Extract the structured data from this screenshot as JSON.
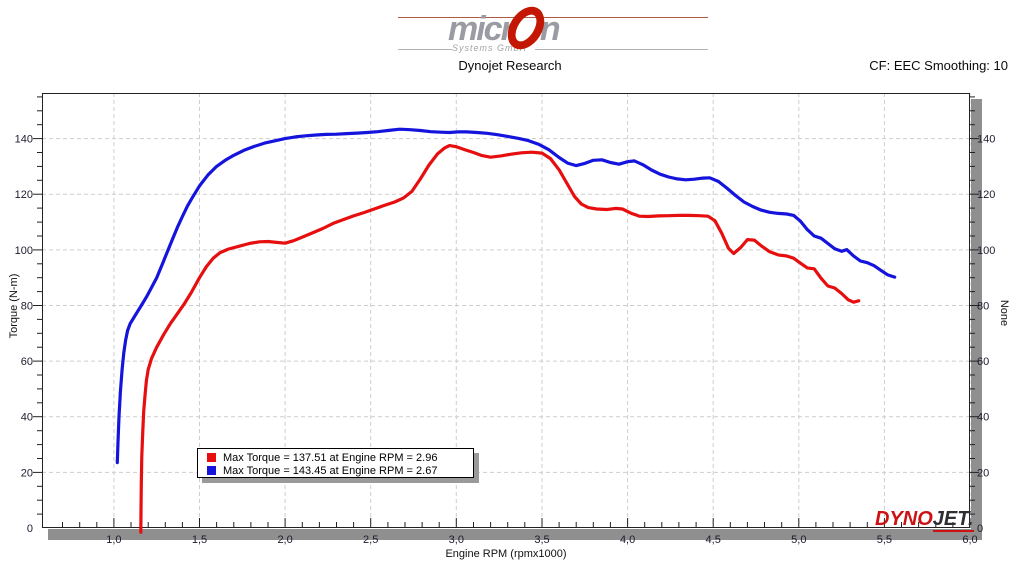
{
  "header": {
    "logo": {
      "brand_left": "micr",
      "brand_right": "n",
      "subtitle": "Systems GmbH"
    },
    "subtitle": "Dynojet Research",
    "smoothing_label": "CF: EEC Smoothing: 10"
  },
  "footer_logo": {
    "dyno": "DYNO",
    "jet": "JET."
  },
  "legend": [
    {
      "color": "#e60e0e",
      "label": "Max Torque = 137.51 at Engine RPM = 2.96"
    },
    {
      "color": "#1414dd",
      "label": "Max Torque = 143.45 at Engine RPM = 2.67"
    }
  ],
  "chart_data": {
    "type": "line",
    "xlabel": "Engine RPM (rpmx1000)",
    "ylabel_left": "Torque (N-m)",
    "ylabel_right": "None",
    "xlim": [
      0.58,
      6.0
    ],
    "ylim": [
      0,
      156.4
    ],
    "grid": "dashed",
    "grid_color": "#cdcdcd",
    "tick_color": "#222222",
    "label_color": "#1c1c2e",
    "x_major_ticks": [
      1.0,
      1.5,
      2.0,
      2.5,
      3.0,
      3.5,
      4.0,
      4.5,
      5.0,
      5.5,
      6.0
    ],
    "x_tick_labels": [
      "1,0",
      "1,5",
      "2,0",
      "2,5",
      "3,0",
      "3,5",
      "4,0",
      "4,5",
      "5,0",
      "5,5",
      "6,0"
    ],
    "x_minor_step": 0.1,
    "y_major_ticks": [
      0,
      20,
      40,
      60,
      80,
      100,
      120,
      140
    ],
    "y_tick_labels": [
      "0",
      "20",
      "40",
      "60",
      "80",
      "100",
      "120",
      "140"
    ],
    "y_minor_step": 5,
    "series": [
      {
        "name": "torque-run-red",
        "color": "#e60e0e",
        "max_torque": 137.51,
        "max_rpm": 2.96,
        "points": [
          [
            1.157,
            -1.5
          ],
          [
            1.158,
            6
          ],
          [
            1.16,
            16
          ],
          [
            1.163,
            26
          ],
          [
            1.168,
            34
          ],
          [
            1.174,
            42
          ],
          [
            1.182,
            48
          ],
          [
            1.19,
            53
          ],
          [
            1.2,
            57
          ],
          [
            1.22,
            61
          ],
          [
            1.25,
            65
          ],
          [
            1.29,
            69.5
          ],
          [
            1.33,
            73.5
          ],
          [
            1.37,
            77
          ],
          [
            1.41,
            80.5
          ],
          [
            1.45,
            84.5
          ],
          [
            1.5,
            90
          ],
          [
            1.54,
            94
          ],
          [
            1.58,
            97
          ],
          [
            1.62,
            99
          ],
          [
            1.67,
            100.3
          ],
          [
            1.73,
            101.3
          ],
          [
            1.79,
            102.3
          ],
          [
            1.85,
            102.9
          ],
          [
            1.9,
            103
          ],
          [
            1.95,
            102.7
          ],
          [
            2,
            102.4
          ],
          [
            2.05,
            103.3
          ],
          [
            2.1,
            104.6
          ],
          [
            2.16,
            106.1
          ],
          [
            2.22,
            107.7
          ],
          [
            2.28,
            109.5
          ],
          [
            2.34,
            110.9
          ],
          [
            2.4,
            112.2
          ],
          [
            2.46,
            113.4
          ],
          [
            2.52,
            114.7
          ],
          [
            2.58,
            116
          ],
          [
            2.64,
            117.2
          ],
          [
            2.69,
            118.6
          ],
          [
            2.74,
            121
          ],
          [
            2.79,
            125.5
          ],
          [
            2.84,
            130.5
          ],
          [
            2.89,
            134.5
          ],
          [
            2.93,
            136.6
          ],
          [
            2.96,
            137.5
          ],
          [
            3,
            137.1
          ],
          [
            3.05,
            136
          ],
          [
            3.1,
            135
          ],
          [
            3.15,
            133.9
          ],
          [
            3.2,
            133.3
          ],
          [
            3.26,
            133.8
          ],
          [
            3.32,
            134.4
          ],
          [
            3.38,
            134.9
          ],
          [
            3.44,
            135.1
          ],
          [
            3.5,
            134.8
          ],
          [
            3.55,
            132.8
          ],
          [
            3.6,
            128.8
          ],
          [
            3.65,
            123.5
          ],
          [
            3.69,
            119.2
          ],
          [
            3.73,
            116.5
          ],
          [
            3.77,
            115.2
          ],
          [
            3.82,
            114.7
          ],
          [
            3.88,
            114.5
          ],
          [
            3.93,
            114.9
          ],
          [
            3.97,
            114.7
          ],
          [
            4.02,
            113.2
          ],
          [
            4.07,
            112.1
          ],
          [
            4.12,
            112
          ],
          [
            4.18,
            112.2
          ],
          [
            4.24,
            112.3
          ],
          [
            4.3,
            112.4
          ],
          [
            4.36,
            112.4
          ],
          [
            4.42,
            112.3
          ],
          [
            4.47,
            112.1
          ],
          [
            4.51,
            110.5
          ],
          [
            4.55,
            106
          ],
          [
            4.59,
            100.5
          ],
          [
            4.62,
            98.7
          ],
          [
            4.66,
            100.8
          ],
          [
            4.7,
            103.7
          ],
          [
            4.74,
            103.5
          ],
          [
            4.78,
            101.5
          ],
          [
            4.83,
            99.3
          ],
          [
            4.88,
            98.2
          ],
          [
            4.93,
            97.8
          ],
          [
            4.97,
            97
          ],
          [
            5.01,
            95.2
          ],
          [
            5.05,
            93.5
          ],
          [
            5.09,
            93.2
          ],
          [
            5.13,
            89.8
          ],
          [
            5.17,
            87
          ],
          [
            5.21,
            86.3
          ],
          [
            5.25,
            84.3
          ],
          [
            5.29,
            82
          ],
          [
            5.32,
            81.2
          ],
          [
            5.35,
            81.7
          ]
        ]
      },
      {
        "name": "torque-run-blue",
        "color": "#1414dd",
        "max_torque": 143.45,
        "max_rpm": 2.67,
        "points": [
          [
            1.02,
            23.5
          ],
          [
            1.024,
            31
          ],
          [
            1.03,
            40
          ],
          [
            1.038,
            49
          ],
          [
            1.048,
            57
          ],
          [
            1.058,
            63
          ],
          [
            1.068,
            67.5
          ],
          [
            1.08,
            71
          ],
          [
            1.095,
            73.5
          ],
          [
            1.115,
            75.5
          ],
          [
            1.135,
            77.5
          ],
          [
            1.16,
            80
          ],
          [
            1.19,
            83
          ],
          [
            1.22,
            86.5
          ],
          [
            1.25,
            90
          ],
          [
            1.28,
            94.5
          ],
          [
            1.31,
            99
          ],
          [
            1.34,
            103.5
          ],
          [
            1.37,
            108
          ],
          [
            1.4,
            112
          ],
          [
            1.43,
            115.8
          ],
          [
            1.46,
            119
          ],
          [
            1.5,
            123
          ],
          [
            1.55,
            127
          ],
          [
            1.6,
            130
          ],
          [
            1.65,
            132.2
          ],
          [
            1.7,
            134
          ],
          [
            1.76,
            135.8
          ],
          [
            1.82,
            137.2
          ],
          [
            1.88,
            138.4
          ],
          [
            1.94,
            139.2
          ],
          [
            2,
            140
          ],
          [
            2.06,
            140.6
          ],
          [
            2.12,
            141
          ],
          [
            2.18,
            141.3
          ],
          [
            2.24,
            141.5
          ],
          [
            2.3,
            141.6
          ],
          [
            2.36,
            141.8
          ],
          [
            2.42,
            142
          ],
          [
            2.48,
            142.2
          ],
          [
            2.54,
            142.5
          ],
          [
            2.6,
            142.9
          ],
          [
            2.67,
            143.4
          ],
          [
            2.73,
            143.2
          ],
          [
            2.79,
            142.9
          ],
          [
            2.85,
            142.5
          ],
          [
            2.91,
            142.3
          ],
          [
            2.96,
            142.2
          ],
          [
            3.01,
            142.4
          ],
          [
            3.06,
            142.4
          ],
          [
            3.12,
            142.2
          ],
          [
            3.18,
            141.9
          ],
          [
            3.24,
            141.4
          ],
          [
            3.3,
            140.8
          ],
          [
            3.36,
            140.1
          ],
          [
            3.42,
            139.3
          ],
          [
            3.48,
            138
          ],
          [
            3.54,
            136
          ],
          [
            3.6,
            133.2
          ],
          [
            3.65,
            131.2
          ],
          [
            3.7,
            130.3
          ],
          [
            3.75,
            131.1
          ],
          [
            3.8,
            132.2
          ],
          [
            3.85,
            132.4
          ],
          [
            3.9,
            131.4
          ],
          [
            3.95,
            130.8
          ],
          [
            4,
            131.7
          ],
          [
            4.04,
            132
          ],
          [
            4.09,
            130.6
          ],
          [
            4.14,
            128.7
          ],
          [
            4.19,
            127.2
          ],
          [
            4.24,
            126.2
          ],
          [
            4.29,
            125.5
          ],
          [
            4.34,
            125.2
          ],
          [
            4.39,
            125.4
          ],
          [
            4.44,
            125.8
          ],
          [
            4.48,
            125.9
          ],
          [
            4.53,
            124.6
          ],
          [
            4.58,
            122.2
          ],
          [
            4.63,
            119.6
          ],
          [
            4.68,
            117.2
          ],
          [
            4.73,
            115.6
          ],
          [
            4.78,
            114.3
          ],
          [
            4.83,
            113.5
          ],
          [
            4.88,
            113.1
          ],
          [
            4.93,
            112.9
          ],
          [
            4.97,
            112.4
          ],
          [
            5.01,
            110.3
          ],
          [
            5.05,
            107.3
          ],
          [
            5.09,
            105
          ],
          [
            5.13,
            104.2
          ],
          [
            5.17,
            102.3
          ],
          [
            5.21,
            100.4
          ],
          [
            5.25,
            99.5
          ],
          [
            5.28,
            100.1
          ],
          [
            5.32,
            97.8
          ],
          [
            5.36,
            96
          ],
          [
            5.4,
            95.4
          ],
          [
            5.44,
            94.3
          ],
          [
            5.48,
            92.6
          ],
          [
            5.52,
            91
          ],
          [
            5.56,
            90.2
          ]
        ]
      }
    ]
  }
}
